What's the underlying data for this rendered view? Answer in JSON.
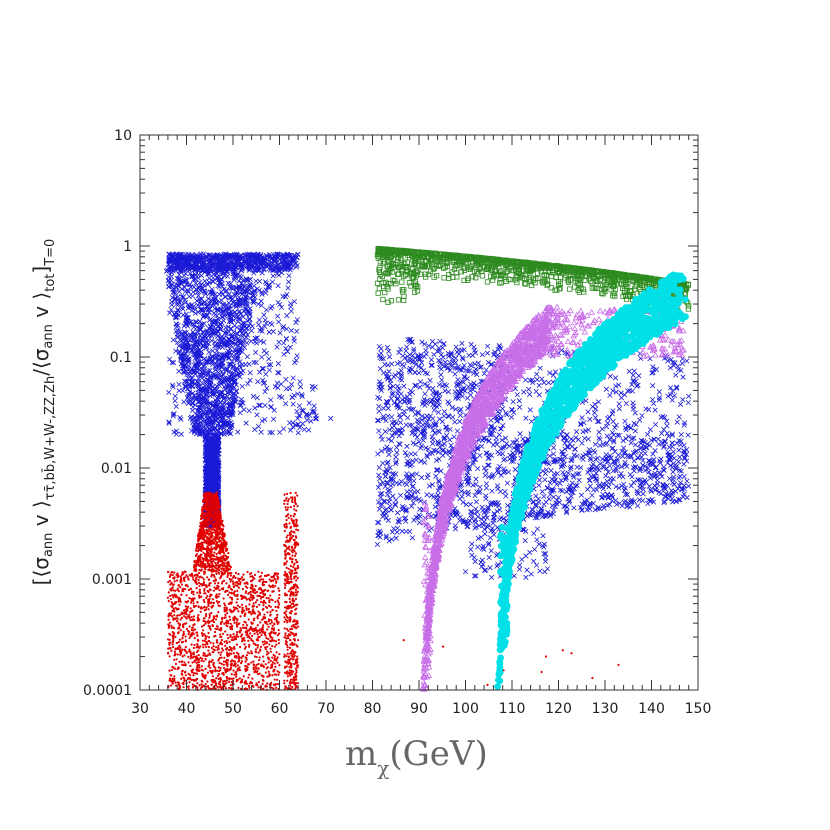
{
  "chart_data": {
    "type": "scatter",
    "xlabel_main": "m",
    "xlabel_sub": "χ",
    "xlabel_tail": "(GeV)",
    "ylabel_open": "[⟨σ",
    "ylabel_ann1": "ann",
    "ylabel_v1": " v ⟩",
    "ylabel_chan": "ττ̄,bb̄,W+W-,ZZ,Zh",
    "ylabel_mid": "/⟨σ",
    "ylabel_ann2": "ann",
    "ylabel_v2": " v ⟩",
    "ylabel_tot": "tot",
    "ylabel_close": "]",
    "ylabel_temp": "T=0",
    "xlim": [
      30,
      150
    ],
    "ylim": [
      0.0001,
      10
    ],
    "yscale": "log",
    "x_ticks": [
      "30",
      "40",
      "50",
      "60",
      "70",
      "80",
      "90",
      "100",
      "110",
      "120",
      "130",
      "140",
      "150"
    ],
    "y_ticks": [
      "0.0001",
      "0.001",
      "0.01",
      "0.1",
      "1",
      "10"
    ],
    "grid": false,
    "legend": "none",
    "series": [
      {
        "marker": "x",
        "color": "#1a1ad6",
        "region": "low-mass",
        "x_range": [
          35,
          64
        ],
        "y_range": [
          0.003,
          0.85
        ]
      },
      {
        "marker": "dot",
        "color": "#e00000",
        "region": "low-mass",
        "x_range": [
          36,
          64
        ],
        "y_range": [
          0.0001,
          0.006
        ]
      },
      {
        "marker": "x",
        "color": "#1a1ad6",
        "region": "high-mass",
        "x_range": [
          81,
          148
        ],
        "y_range": [
          0.001,
          0.3
        ]
      },
      {
        "marker": "square",
        "color": "#2e8b20",
        "region": "high-mass",
        "x_range": [
          81,
          148
        ],
        "y_range": [
          0.3,
          0.95
        ]
      },
      {
        "marker": "triangle",
        "color": "#c86fe8",
        "region": "high-mass",
        "x_range": [
          91,
          147
        ],
        "y_range": [
          0.0001,
          0.28
        ]
      },
      {
        "marker": "circle",
        "color": "#00e0e6",
        "region": "high-mass",
        "x_range": [
          107,
          148
        ],
        "y_range": [
          0.00025,
          0.55
        ]
      }
    ]
  }
}
